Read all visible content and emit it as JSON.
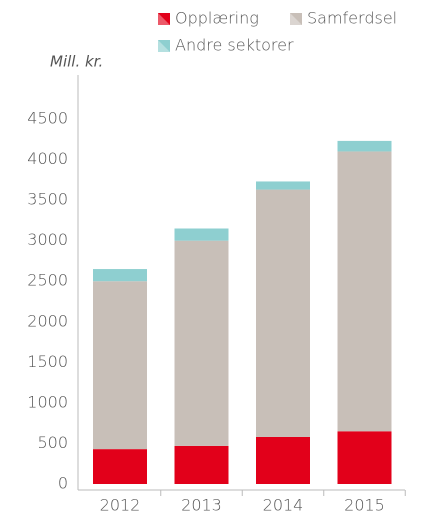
{
  "chart_data": {
    "type": "stacked_bar",
    "y_label": "Mill. kr.",
    "categories": [
      "2012",
      "2013",
      "2014",
      "2015"
    ],
    "series": [
      {
        "name": "Opplæring",
        "color": "#e2001a",
        "values": [
          430,
          470,
          580,
          650
        ]
      },
      {
        "name": "Samferdsel",
        "color": "#c8bfb8",
        "values": [
          2070,
          2530,
          3050,
          3450
        ]
      },
      {
        "name": "Andre sektorer",
        "color": "#8ecfd0",
        "values": [
          150,
          150,
          100,
          130
        ]
      }
    ],
    "ylim": [
      0,
      4500
    ],
    "yticks": [
      0,
      500,
      1000,
      1500,
      2000,
      2500,
      3000,
      3500,
      4000,
      4500
    ],
    "legend": "top"
  }
}
